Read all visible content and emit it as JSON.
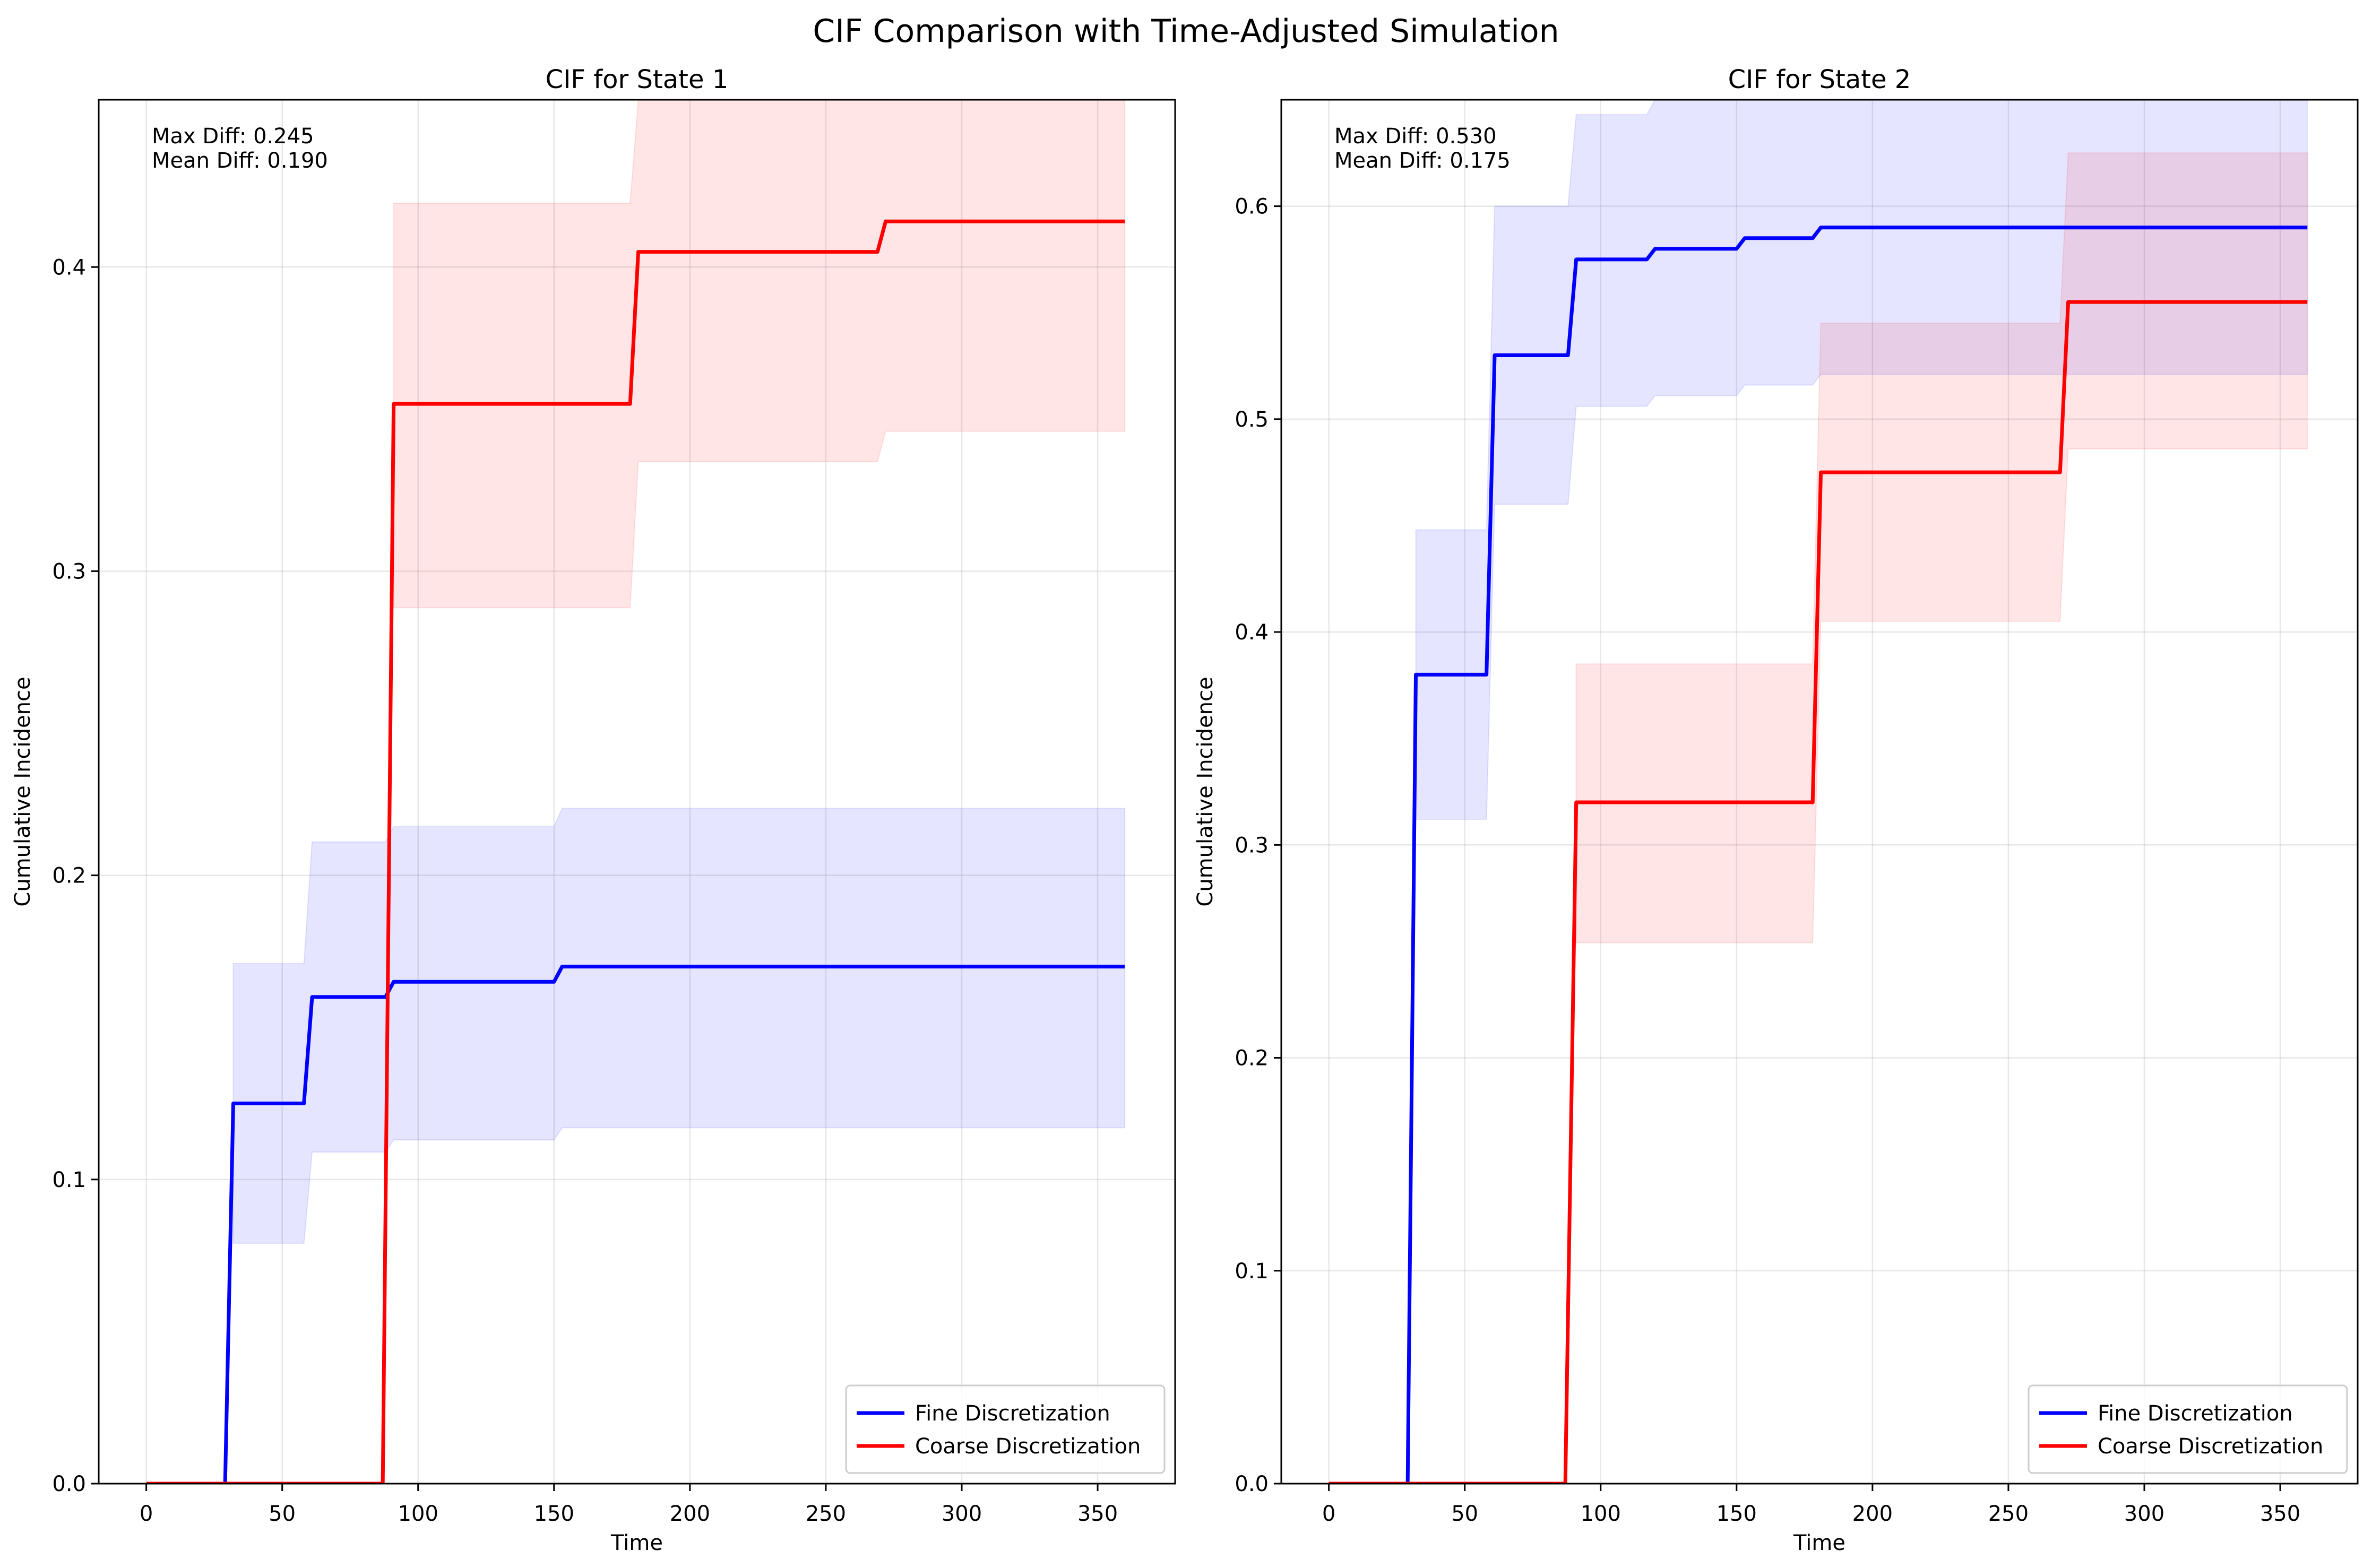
{
  "title": "CIF Comparison with Time-Adjusted Simulation",
  "colors": {
    "fine": "#0000ff",
    "coarse": "#ff0000",
    "grid": "#b0b0b0",
    "axis": "#000000"
  },
  "chart_data": [
    {
      "type": "line",
      "title": "CIF for State 1",
      "xlabel": "Time",
      "ylabel": "Cumulative Incidence",
      "xlim": [
        -17.5,
        378.5
      ],
      "ylim": [
        0,
        0.455
      ],
      "xticks": [
        0,
        50,
        100,
        150,
        200,
        250,
        300,
        350
      ],
      "yticks": [
        0.0,
        0.1,
        0.2,
        0.3,
        0.4
      ],
      "ytick_labels": [
        "0.0",
        "0.1",
        "0.2",
        "0.3",
        "0.4"
      ],
      "grid": true,
      "legend_position": "lower-right",
      "annotation": {
        "line1": "Max Diff: 0.245",
        "line2": "Mean Diff: 0.190"
      },
      "series": [
        {
          "name": "Fine Discretization",
          "color": "#0000ff",
          "x": [
            0,
            29,
            32,
            58,
            61,
            88,
            91,
            150,
            153,
            360
          ],
          "y": [
            0,
            0,
            0.125,
            0.125,
            0.16,
            0.16,
            0.165,
            0.165,
            0.17,
            0.17
          ],
          "band_x": [
            32,
            58,
            61,
            88,
            91,
            150,
            153,
            360
          ],
          "band_lower": [
            0.079,
            0.079,
            0.109,
            0.109,
            0.113,
            0.113,
            0.117,
            0.117
          ],
          "band_upper": [
            0.171,
            0.171,
            0.211,
            0.211,
            0.216,
            0.216,
            0.222,
            0.222
          ]
        },
        {
          "name": "Coarse Discretization",
          "color": "#ff0000",
          "x": [
            0,
            87,
            91,
            178,
            181,
            269,
            272,
            360
          ],
          "y": [
            0,
            0,
            0.355,
            0.355,
            0.405,
            0.405,
            0.415,
            0.415
          ],
          "band_x": [
            91,
            178,
            181,
            269,
            272,
            360
          ],
          "band_lower": [
            0.288,
            0.288,
            0.336,
            0.336,
            0.346,
            0.346
          ],
          "band_upper": [
            0.421,
            0.421,
            0.455,
            0.455,
            0.455,
            0.455
          ]
        }
      ]
    },
    {
      "type": "line",
      "title": "CIF for State 2",
      "xlabel": "Time",
      "ylabel": "Cumulative Incidence",
      "xlim": [
        -17.5,
        378.5
      ],
      "ylim": [
        0,
        0.65
      ],
      "xticks": [
        0,
        50,
        100,
        150,
        200,
        250,
        300,
        350
      ],
      "yticks": [
        0.0,
        0.1,
        0.2,
        0.3,
        0.4,
        0.5,
        0.6
      ],
      "ytick_labels": [
        "0.0",
        "0.1",
        "0.2",
        "0.3",
        "0.4",
        "0.5",
        "0.6"
      ],
      "grid": true,
      "legend_position": "lower-right",
      "annotation": {
        "line1": "Max Diff: 0.530",
        "line2": "Mean Diff: 0.175"
      },
      "series": [
        {
          "name": "Fine Discretization",
          "color": "#0000ff",
          "x": [
            0,
            29,
            32,
            58,
            61,
            88,
            91,
            117,
            120,
            150,
            153,
            178,
            181,
            360
          ],
          "y": [
            0,
            0,
            0.38,
            0.38,
            0.53,
            0.53,
            0.575,
            0.575,
            0.58,
            0.58,
            0.585,
            0.585,
            0.59,
            0.59
          ],
          "band_x": [
            32,
            58,
            61,
            88,
            91,
            117,
            120,
            150,
            153,
            178,
            181,
            360
          ],
          "band_lower": [
            0.312,
            0.312,
            0.46,
            0.46,
            0.506,
            0.506,
            0.511,
            0.511,
            0.516,
            0.516,
            0.521,
            0.521
          ],
          "band_upper": [
            0.448,
            0.448,
            0.6,
            0.6,
            0.643,
            0.643,
            0.65,
            0.65,
            0.65,
            0.65,
            0.65,
            0.65
          ]
        },
        {
          "name": "Coarse Discretization",
          "color": "#ff0000",
          "x": [
            0,
            87,
            91,
            178,
            181,
            269,
            272,
            360
          ],
          "y": [
            0,
            0,
            0.32,
            0.32,
            0.475,
            0.475,
            0.555,
            0.555
          ],
          "band_x": [
            91,
            178,
            181,
            269,
            272,
            360
          ],
          "band_lower": [
            0.254,
            0.254,
            0.405,
            0.405,
            0.486,
            0.486
          ],
          "band_upper": [
            0.385,
            0.385,
            0.545,
            0.545,
            0.625,
            0.625
          ]
        }
      ]
    }
  ]
}
